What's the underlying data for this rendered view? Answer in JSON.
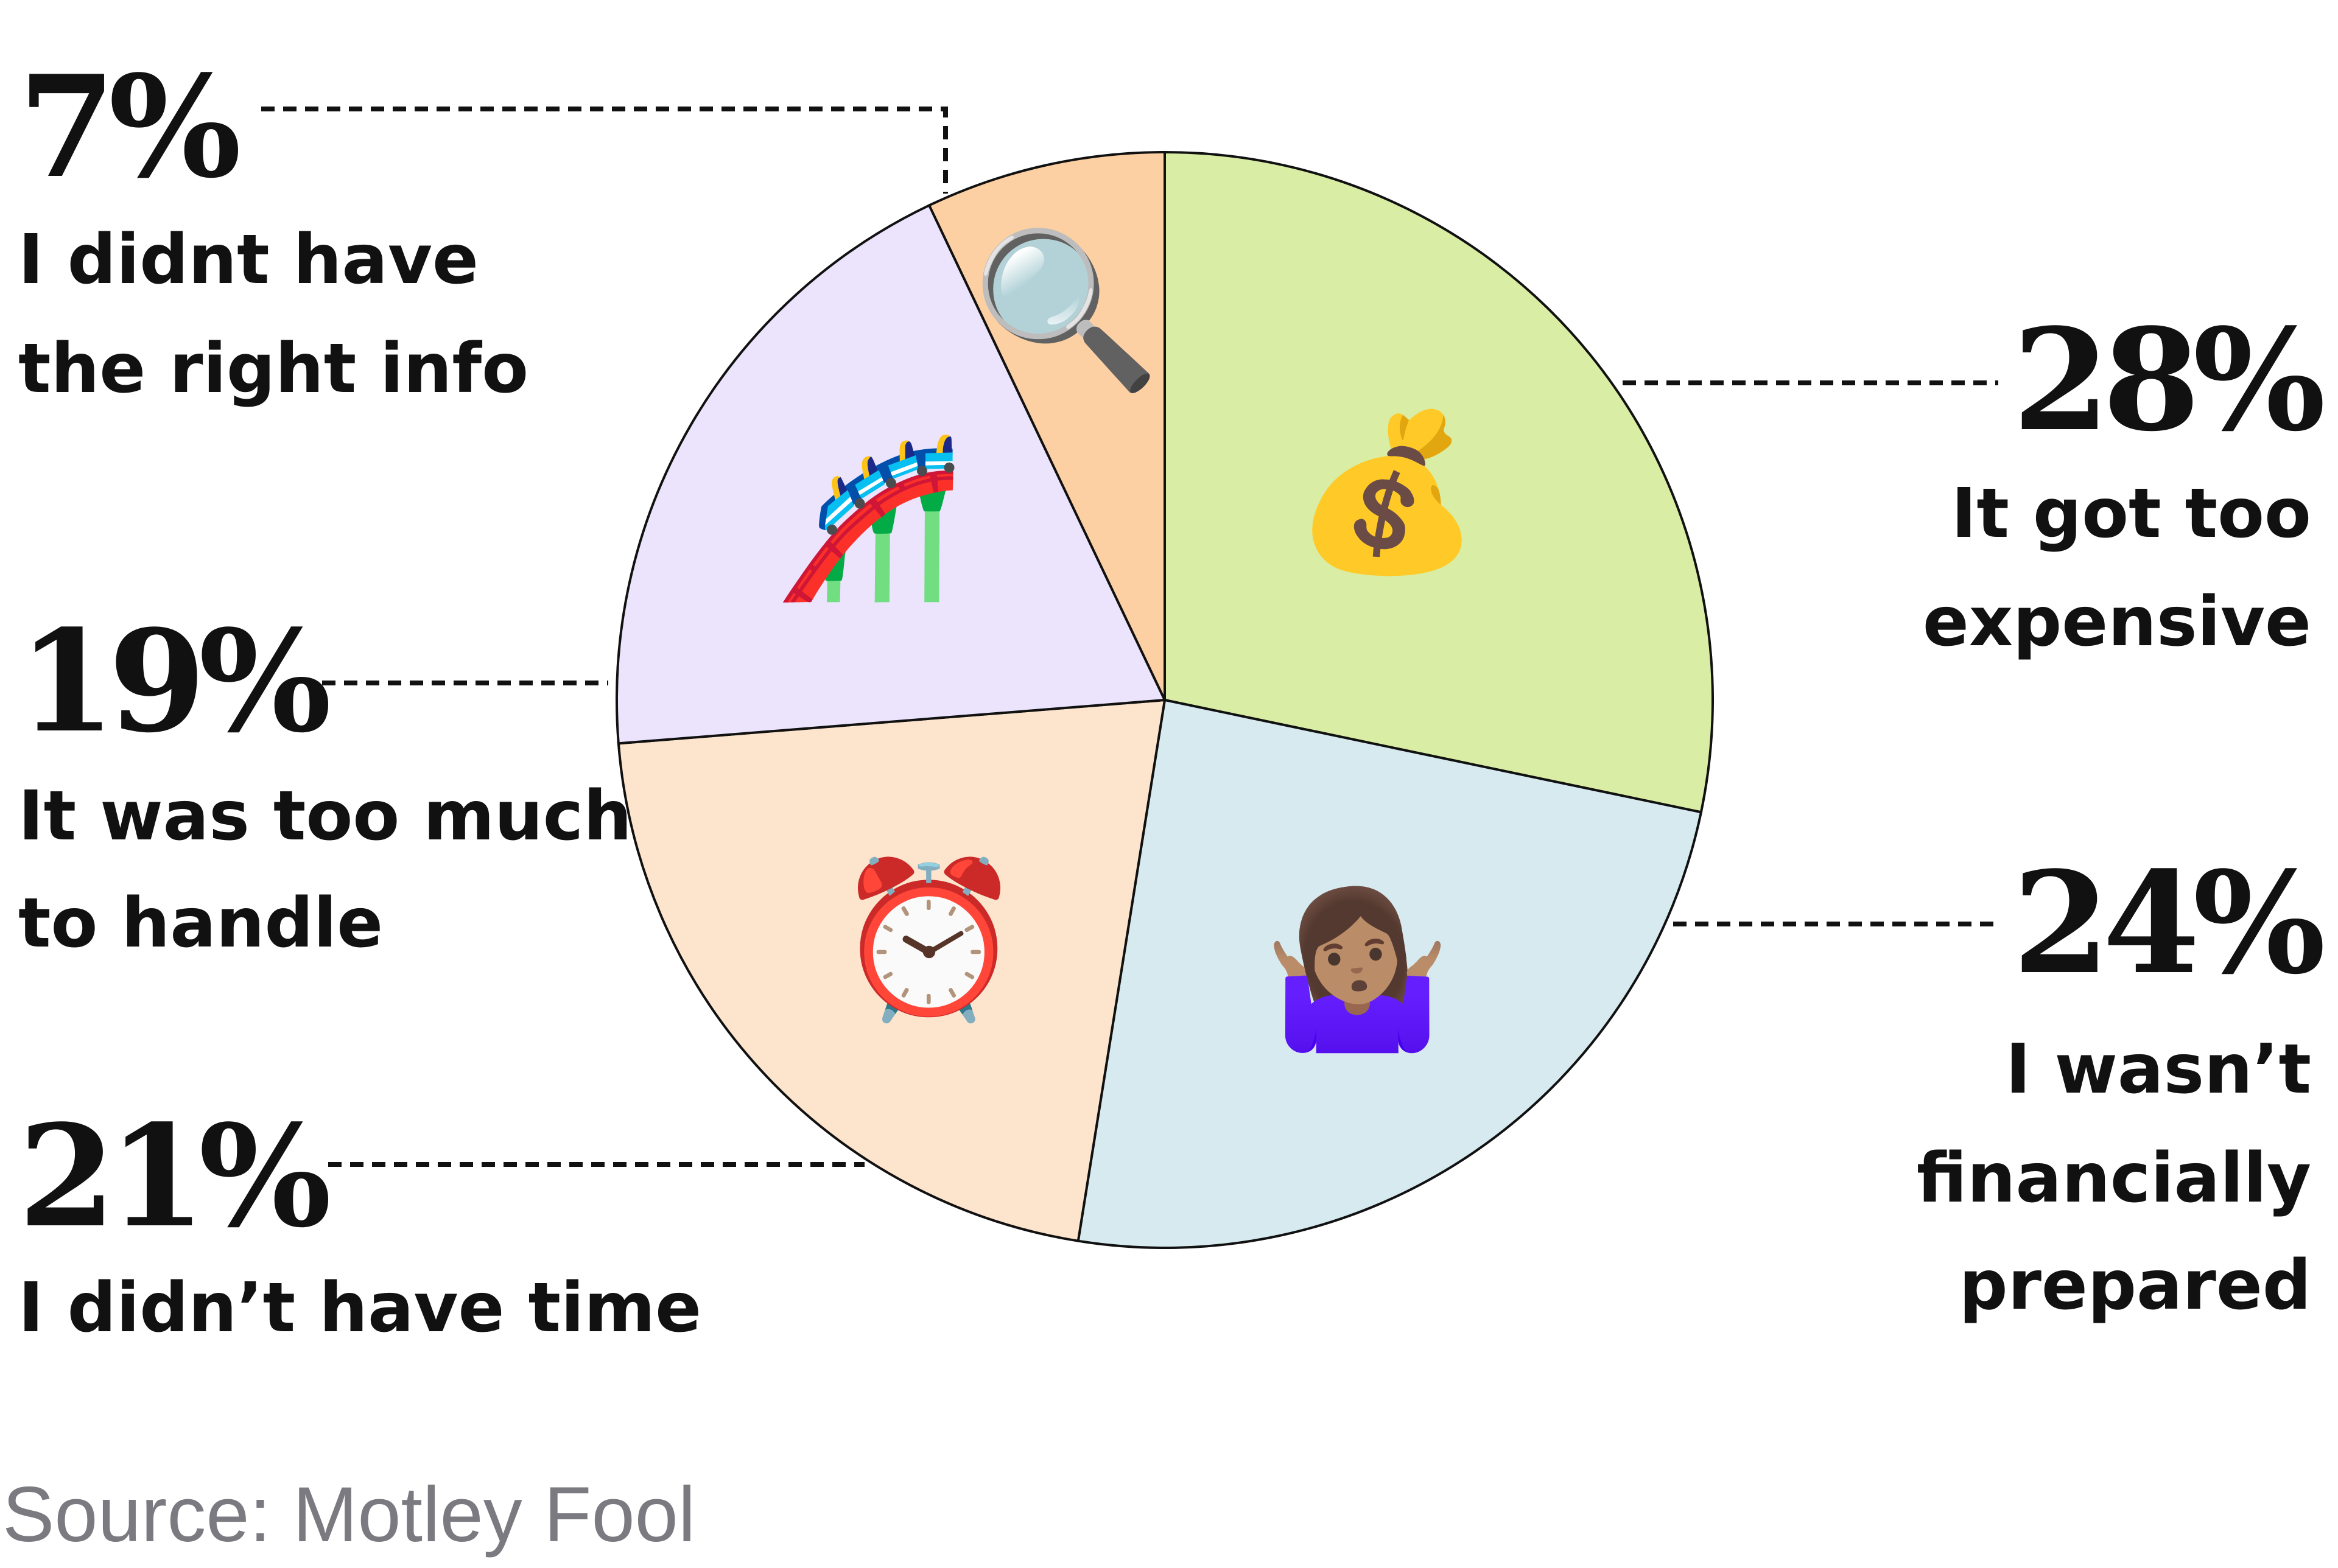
{
  "chart_data": {
    "type": "pie",
    "start": "top",
    "direction": "clockwise",
    "slices": [
      {
        "label": "It got too expensive",
        "lines": [
          "It got too",
          "expensive"
        ],
        "value": 28,
        "value_label": "28%",
        "color": "#d9eda4",
        "icon": "money-bag-icon",
        "emoji": "💰"
      },
      {
        "label": "I wasn’t financially prepared",
        "lines": [
          "I wasn’t",
          "financially",
          "prepared"
        ],
        "value": 24,
        "value_label": "24%",
        "color": "#d6eaf0",
        "icon": "person-shrugging-icon",
        "emoji": "🤷🏽‍♀️"
      },
      {
        "label": "I didn’t have time",
        "lines": [
          "I didn’t have time"
        ],
        "value": 21,
        "value_label": "21%",
        "color": "#fde4cc",
        "icon": "alarm-clock-icon",
        "emoji": "⏰"
      },
      {
        "label": "It was too much to handle",
        "lines": [
          "It was too much",
          "to handle"
        ],
        "value": 19,
        "value_label": "19%",
        "color": "#ece3fc",
        "icon": "roller-coaster-icon",
        "emoji": "🎢"
      },
      {
        "label": "I didnt have the right info",
        "lines": [
          "I didnt have",
          "the right info"
        ],
        "value": 7,
        "value_label": "7%",
        "color": "#fdd0a4",
        "icon": "magnifying-glass-icon",
        "emoji": "🔍"
      }
    ],
    "source": "Source: Motley Fool"
  }
}
